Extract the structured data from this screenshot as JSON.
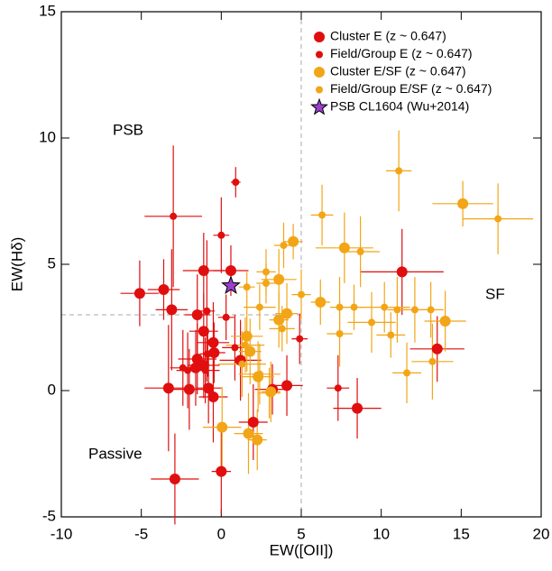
{
  "chart_data": {
    "type": "scatter",
    "xlabel": "EW([OII])",
    "ylabel": "EW(Hδ)",
    "xlim": [
      -10,
      20
    ],
    "ylim": [
      -5,
      15
    ],
    "xticks": [
      -10,
      -5,
      0,
      5,
      10,
      15,
      20
    ],
    "yticks": [
      -5,
      0,
      5,
      10,
      15
    ],
    "divider_x": 5,
    "divider_y": 3,
    "annotations": [
      "PSB",
      "SF",
      "Passive"
    ],
    "series": [
      {
        "name": "Cluster E (z ~ 0.647)",
        "color": "#e00e0e",
        "marker": "circle-large",
        "x": [
          -5.1,
          -3.6,
          -3.1,
          -1.1,
          0.6,
          -1.5,
          -1.1,
          -0.5,
          -0.45,
          -1.5,
          -1.6,
          -1.1,
          -2.0,
          -0.8,
          -0.5,
          -3.3,
          1.2,
          2.0,
          4.1,
          3.2,
          0,
          -2.9,
          8.5,
          11.3,
          13.5
        ],
        "y": [
          3.85,
          4.0,
          3.2,
          4.75,
          4.75,
          3.0,
          2.35,
          1.9,
          1.5,
          1.25,
          0.9,
          1.0,
          0.05,
          0.1,
          -0.25,
          0.1,
          1.2,
          -1.25,
          0.2,
          0.05,
          -3.2,
          -3.5,
          -0.7,
          4.7,
          1.65
        ],
        "x_err": [
          1.2,
          1.0,
          1.0,
          1.3,
          1.1,
          0.8,
          0.9,
          1.0,
          0.7,
          1.2,
          0.8,
          1.0,
          1.4,
          0.8,
          0.9,
          1.5,
          1.3,
          0.9,
          1.0,
          1.1,
          0.6,
          1.5,
          1.5,
          2.6,
          1.7
        ],
        "y_err": [
          1.3,
          1.2,
          2.4,
          1.5,
          1.0,
          1.6,
          1.5,
          1.6,
          1.2,
          1.4,
          1.5,
          1.3,
          1.6,
          1.4,
          1.8,
          2.5,
          1.6,
          1.5,
          1.2,
          1.0,
          1.7,
          1.8,
          1.2,
          1.7,
          1.3
        ]
      },
      {
        "name": "Field/Group E (z ~ 0.647)",
        "color": "#e00e0e",
        "marker": "circle-small",
        "x": [
          0.9,
          -3.0,
          0,
          -0.9,
          -2.4,
          0.85,
          4.9,
          7.3,
          0.3,
          -0.85,
          -1.0,
          -2.1
        ],
        "y": [
          8.25,
          6.9,
          6.15,
          3.15,
          0.9,
          1.7,
          2.05,
          0.1,
          2.9,
          1.45,
          0.8,
          0.8
        ],
        "x_err": [
          0.3,
          1.8,
          0.5,
          0.5,
          0.8,
          0.8,
          0.5,
          0.7,
          0.5,
          0.5,
          0.9,
          0.7
        ],
        "y_err": [
          0.6,
          2.8,
          1.5,
          2.8,
          1.5,
          1.3,
          1.0,
          1.3,
          0.9,
          0.9,
          1.3,
          1.5
        ]
      },
      {
        "name": "Cluster E/SF (z ~ 0.647)",
        "color": "#f2a516",
        "marker": "circle-large",
        "x": [
          4.5,
          7.7,
          15.1,
          3.6,
          6.2,
          4.1,
          3.6,
          1.6,
          1.8,
          14.0,
          2.3,
          3.1,
          0.05,
          1.7,
          2.25
        ],
        "y": [
          5.9,
          5.65,
          7.4,
          4.4,
          3.5,
          3.05,
          2.8,
          2.15,
          1.55,
          2.75,
          0.55,
          -0.05,
          -1.45,
          -1.7,
          -1.95
        ],
        "x_err": [
          0.6,
          1.8,
          1.9,
          1.1,
          0.6,
          0.7,
          0.6,
          1.0,
          0.7,
          1.3,
          1.0,
          0.6,
          1.2,
          0.9,
          0.6
        ],
        "y_err": [
          0.7,
          1.4,
          0.9,
          1.2,
          0.9,
          1.2,
          1.1,
          1.4,
          1.3,
          1.2,
          1.4,
          1.2,
          1.6,
          1.6,
          1.2
        ]
      },
      {
        "name": "Field/Group E/SF (z ~ 0.647)",
        "color": "#f2a516",
        "marker": "circle-small",
        "x": [
          11.1,
          17.3,
          6.3,
          3.9,
          8.7,
          2.8,
          2.8,
          1.6,
          5.0,
          2.4,
          7.4,
          8.3,
          10.2,
          11.0,
          12.1,
          13.1,
          9.4,
          7.4,
          10.6,
          3.8,
          1.5,
          1.3,
          2.4,
          11.6,
          13.2,
          3.0
        ],
        "y": [
          8.7,
          6.8,
          6.95,
          5.75,
          5.5,
          4.7,
          4.25,
          4.1,
          3.8,
          3.3,
          3.3,
          3.3,
          3.3,
          3.2,
          3.2,
          3.2,
          2.7,
          2.25,
          2.2,
          2.45,
          1.8,
          1.05,
          0.65,
          0.7,
          1.15,
          -0.1
        ],
        "x_err": [
          0.8,
          2.2,
          0.7,
          0.6,
          1.2,
          0.6,
          0.6,
          0.5,
          0.6,
          1.0,
          0.6,
          0.6,
          1.6,
          0.6,
          0.8,
          0.8,
          1.5,
          0.8,
          0.9,
          0.8,
          1.2,
          1.5,
          1.3,
          0.9,
          1.3,
          0.7
        ],
        "y_err": [
          1.6,
          1.4,
          1.2,
          0.9,
          1.4,
          0.9,
          0.8,
          0.6,
          1.0,
          0.9,
          1.2,
          0.9,
          1.0,
          1.3,
          1.3,
          1.1,
          1.2,
          1.3,
          0.9,
          0.9,
          1.1,
          1.3,
          1.2,
          1.2,
          1.5,
          1.0
        ]
      },
      {
        "name": "PSB CL1604 (Wu+2014)",
        "color": "#9a3fd0",
        "marker": "star",
        "x": [
          0.6
        ],
        "y": [
          4.15
        ]
      }
    ]
  }
}
